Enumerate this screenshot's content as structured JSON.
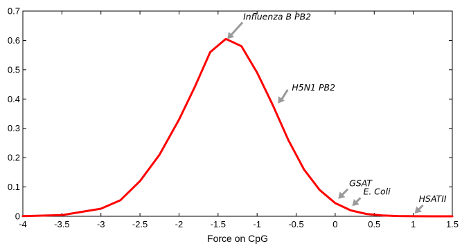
{
  "chart_data": {
    "type": "line",
    "title": "",
    "xlabel": "Force on CpG",
    "ylabel": "",
    "xlim": [
      -4,
      1.5
    ],
    "ylim": [
      0,
      0.7
    ],
    "grid": false,
    "x_ticks": [
      -4,
      -3.5,
      -3,
      -2.5,
      -2,
      -1.5,
      -1,
      -0.5,
      0,
      0.5,
      1,
      1.5
    ],
    "x_tick_labels": [
      "-4",
      "-3.5",
      "-3",
      "-2.5",
      "-2",
      "-1.5",
      "-1",
      "-0.5",
      "0",
      "0.5",
      "1",
      "1.5"
    ],
    "y_ticks": [
      0,
      0.1,
      0.2,
      0.3,
      0.4,
      0.5,
      0.6,
      0.7
    ],
    "y_tick_labels": [
      "0",
      "0.1",
      "0.2",
      "0.3",
      "0.4",
      "0.5",
      "0.6",
      "0.7"
    ],
    "series": [
      {
        "color": "#ff0000",
        "x": [
          -4,
          -3.5,
          -3,
          -2.75,
          -2.5,
          -2.25,
          -2,
          -1.8,
          -1.6,
          -1.4,
          -1.2,
          -1,
          -0.8,
          -0.6,
          -0.4,
          -0.2,
          0,
          0.2,
          0.4,
          0.6,
          0.8,
          1,
          1.25,
          1.5
        ],
        "y": [
          0.0004,
          0.004,
          0.026,
          0.055,
          0.12,
          0.21,
          0.33,
          0.44,
          0.56,
          0.605,
          0.58,
          0.49,
          0.38,
          0.26,
          0.16,
          0.09,
          0.045,
          0.02,
          0.008,
          0.003,
          0.001,
          0.0003,
          0.0001,
          0
        ]
      }
    ],
    "annotations": [
      {
        "text": "Influenza B PB2",
        "x": -1.4,
        "y": 0.6
      },
      {
        "text": "H5N1 PB2",
        "x": -0.75,
        "y": 0.38
      },
      {
        "text": "GSAT",
        "x": 0.02,
        "y": 0.055
      },
      {
        "text": "E. Coli",
        "x": 0.2,
        "y": 0.03
      },
      {
        "text": "HSATII",
        "x": 1.0,
        "y": 0.005
      }
    ],
    "annotation_color": "#9a9a9a"
  }
}
